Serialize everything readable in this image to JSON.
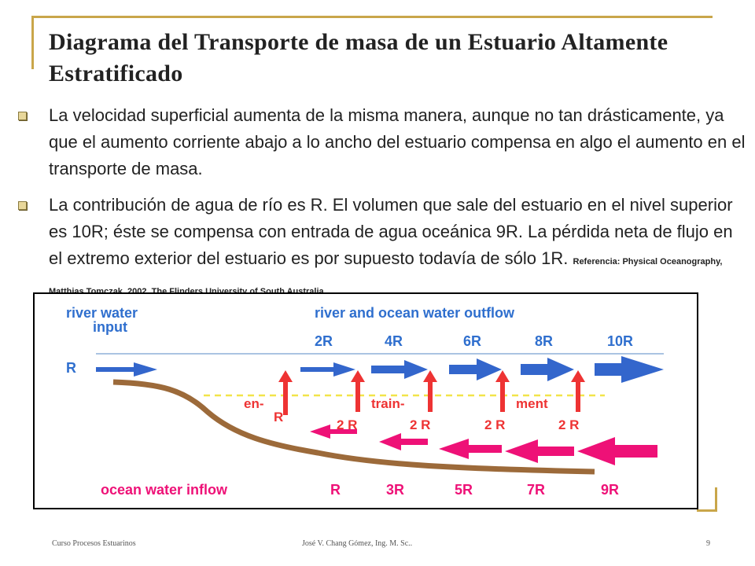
{
  "title": "Diagrama del Transporte de masa de un Estuario Altamente Estratificado",
  "bullets": [
    {
      "text": "La velocidad superficial aumenta de la misma manera, aunque no tan drásticamente, ya que el aumento corriente abajo a lo ancho del estuario compensa en algo el aumento en el transporte de masa."
    },
    {
      "text": "La contribución de agua de río es R. El volumen que sale del estuario en el nivel superior es 10R; éste se compensa con entrada de agua oceánica 9R. La pérdida neta de flujo en el extremo exterior del estuario es por supuesto todavía de sólo 1R.",
      "reference": "Referencia: Physical Oceanography, Matthias Tomczak, 2002. The Flinders University of South Australia"
    }
  ],
  "diagram": {
    "river_input_label": [
      "river water",
      "input"
    ],
    "outflow_label": "river and ocean water outflow",
    "input_arrow_label": "R",
    "outflow_values": [
      "2R",
      "4R",
      "6R",
      "8R",
      "10R"
    ],
    "entrainment_parts": [
      "en-",
      "R",
      "train-",
      "ment"
    ],
    "entrainment_values": [
      "2 R",
      "2 R",
      "2 R",
      "2 R"
    ],
    "inflow_label": "ocean water inflow",
    "inflow_values": [
      "R",
      "3R",
      "5R",
      "7R",
      "9R"
    ],
    "colors": {
      "label_blue": "#2f6fce",
      "arrow_blue": "#3366cc",
      "red": "#ee3333",
      "magenta": "#ee1177",
      "sediment": "#9c6a3a",
      "interface": "#f2e44a"
    }
  },
  "footer": {
    "left": "Curso Procesos Estuarinos",
    "center": "José V. Chang Gómez, Ing. M. Sc..",
    "page": "9"
  }
}
